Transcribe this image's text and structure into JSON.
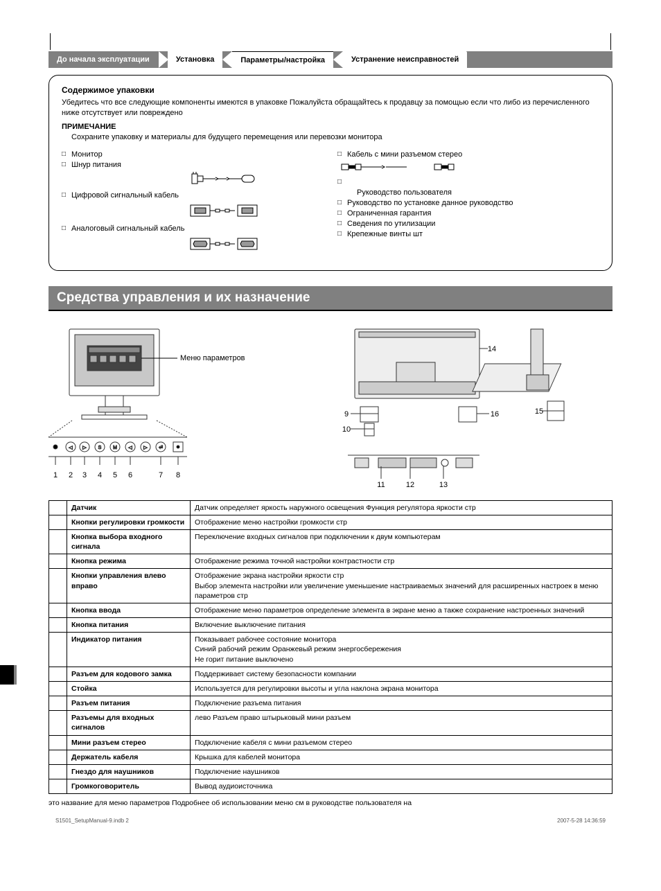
{
  "tabs": {
    "t1": "До начала эксплуатации",
    "t2": "Установка",
    "t3": "Параметры/настройка",
    "t4": "Устранение неисправностей"
  },
  "package": {
    "title": "Содержимое упаковки",
    "intro": "Убедитесь что все следующие компоненты имеются в упаковке Пожалуйста обращайтесь к продавцу за помощью если что либо из перечисленного ниже отсутствует или повреждено",
    "note_label": "ПРИМЕЧАНИЕ",
    "note_text": "Сохраните упаковку и материалы для будущего перемещения или перевозки монитора",
    "left_items": {
      "i1": "Монитор",
      "i2": "Шнур питания",
      "i3": "Цифровой сигнальный кабель",
      "i4": "Аналоговый сигнальный кабель"
    },
    "right_items": {
      "i1": "Кабель с мини разъемом стерео",
      "i2": "Руководство пользователя",
      "i3": "Руководство по установке данное руководство",
      "i4": "Ограниченная гарантия",
      "i5": "Сведения по утилизации",
      "i6": "Крепежные винты                     шт"
    }
  },
  "section_title": "Средства управления и их назначение",
  "menu_label": "Меню параметров",
  "callouts": {
    "c1": "1",
    "c2": "2",
    "c3": "3",
    "c4": "4",
    "c5": "5",
    "c6": "6",
    "c7": "7",
    "c8": "8",
    "c9": "9",
    "c10": "10",
    "c11": "11",
    "c12": "12",
    "c13": "13",
    "c14": "14",
    "c15": "15",
    "c16": "16"
  },
  "table": [
    {
      "n": "",
      "l": "Датчик",
      "d": "Датчик определяет яркость наружного освещения Функция регулятора яркости стр"
    },
    {
      "n": "",
      "l": "Кнопки регулировки громкости",
      "d": "Отображение меню настройки громкости стр"
    },
    {
      "n": "",
      "l": "Кнопка выбора входного сигнала",
      "d": "Переключение входных сигналов при подключении к двум компьютерам"
    },
    {
      "n": "",
      "l": "Кнопка режима",
      "d": "Отображение режима точной настройки контрастности                              стр"
    },
    {
      "n": "",
      "l": "Кнопки управления влево вправо",
      "d": "Отображение экрана настройки яркости стр\nВыбор элемента настройки или увеличение уменьшение настраиваемых значений для расширенных настроек в меню параметров стр"
    },
    {
      "n": "",
      "l": "Кнопка ввода",
      "d": "Отображение меню параметров определение элемента в экране меню а также сохранение настроенных значений"
    },
    {
      "n": "",
      "l": "Кнопка питания",
      "d": "Включение выключение питания"
    },
    {
      "n": "",
      "l": "Индикатор питания",
      "d": "Показывает рабочее состояние монитора\nСиний рабочий режим            Оранжевый режим энергосбережения\nНе горит питание выключено"
    },
    {
      "n": "",
      "l": "Разъем для кодового замка",
      "d": "Поддерживает систему безопасности                       компании"
    },
    {
      "n": "",
      "l": "Стойка",
      "d": "Используется для регулировки высоты и угла наклона экрана монитора"
    },
    {
      "n": "",
      "l": "Разъем питания",
      "d": "Подключение разъема питания"
    },
    {
      "n": "",
      "l": "Разъемы для входных сигналов",
      "d": "лево Разъем              право        штырьковый мини разъем"
    },
    {
      "n": "",
      "l": "Мини разъем стерео",
      "d": "Подключение кабеля с мини разъемом стерео"
    },
    {
      "n": "",
      "l": "Держатель кабеля",
      "d": "Крышка для кабелей монитора"
    },
    {
      "n": "",
      "l": "Гнездо для наушников",
      "d": "Подключение наушников"
    },
    {
      "n": "",
      "l": "Громкоговоритель",
      "d": "Вывод аудиоисточника"
    }
  ],
  "footnote": "это название              для меню параметров  Подробнее об использовании меню                           см в руководстве пользователя на",
  "footer_left": "S1501_SetupManual-9.indb   2",
  "footer_right": "2007-5-28   14:36:59",
  "page_num": ""
}
